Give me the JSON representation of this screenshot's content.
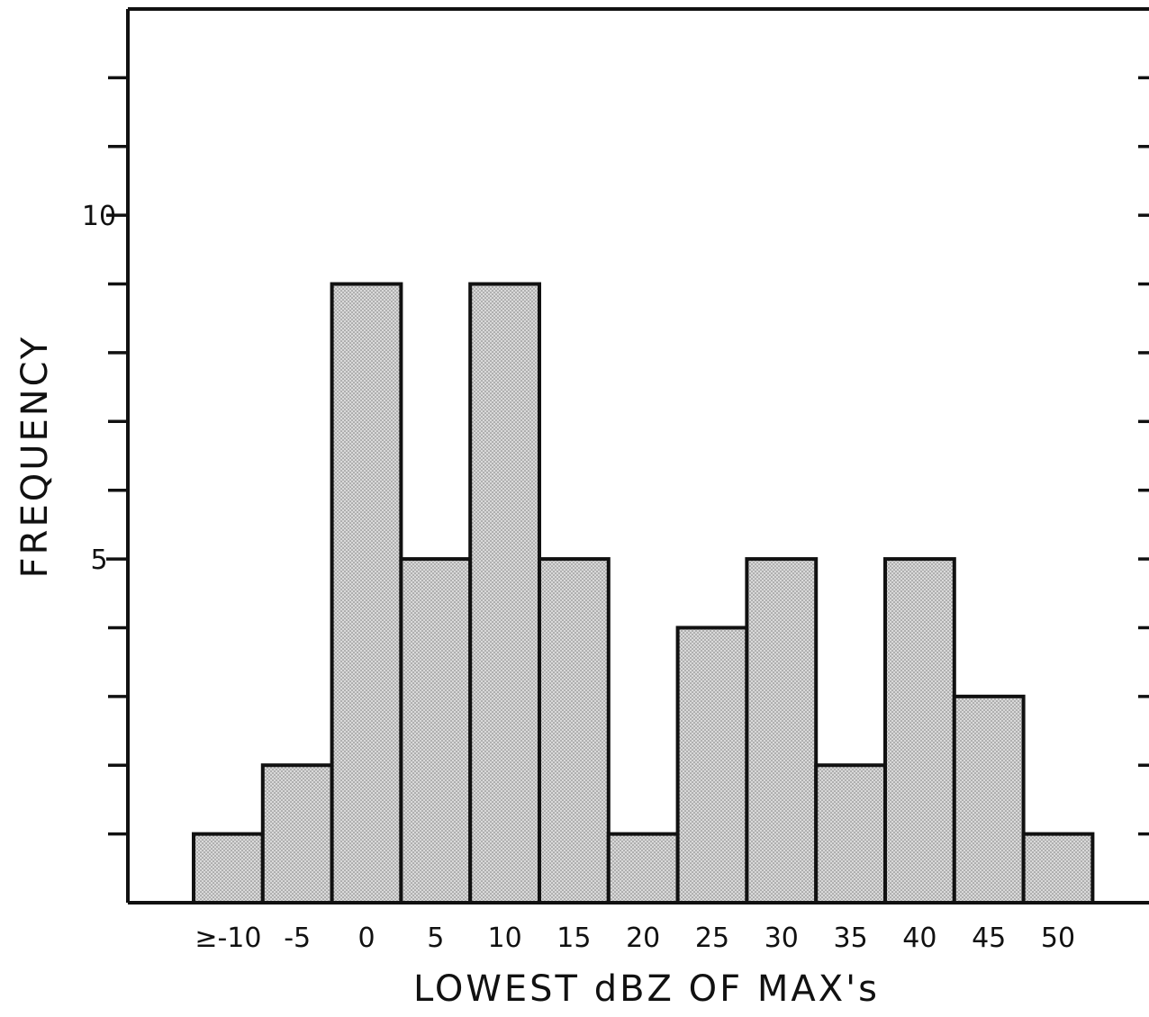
{
  "chart_data": {
    "type": "bar",
    "title": "",
    "xlabel": "LOWEST dBZ OF MAX's",
    "ylabel": "FREQUENCY",
    "categories": [
      "≥-10",
      "-5",
      "0",
      "5",
      "10",
      "15",
      "20",
      "25",
      "30",
      "35",
      "40",
      "45",
      "50"
    ],
    "values": [
      1,
      2,
      9,
      5,
      9,
      5,
      1,
      4,
      5,
      2,
      5,
      3,
      1
    ],
    "ylim": [
      0,
      13
    ],
    "y_major_ticks": [
      "5",
      "10"
    ],
    "y_minor_tick_step": 1,
    "grid": false,
    "legend": "none",
    "bar_fill": "stippled light gray",
    "colors": {
      "bar_fill": "#d9d9d9",
      "stipple": "#777777",
      "outline": "#111111"
    }
  }
}
